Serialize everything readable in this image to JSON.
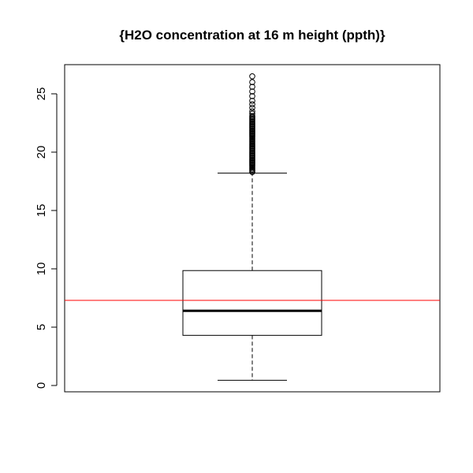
{
  "chart_data": {
    "type": "boxplot",
    "title": "{H2O concentration at 16 m height (ppth)}",
    "xlabel": "",
    "ylabel": "",
    "ylim": [
      -1,
      27.5
    ],
    "yticks": [
      0,
      5,
      10,
      15,
      20,
      25
    ],
    "ytick_labels": [
      "0",
      "5",
      "10",
      "15",
      "20",
      "25"
    ],
    "box": {
      "min": 0.45,
      "q1": 4.3,
      "median": 6.4,
      "q3": 9.85,
      "upper_whisker": 18.2
    },
    "outliers": [
      18.3,
      18.4,
      18.5,
      18.6,
      18.7,
      18.8,
      18.9,
      19.0,
      19.1,
      19.2,
      19.3,
      19.4,
      19.5,
      19.6,
      19.7,
      19.8,
      19.9,
      20.0,
      20.1,
      20.2,
      20.3,
      20.4,
      20.5,
      20.6,
      20.7,
      20.8,
      20.9,
      21.0,
      21.1,
      21.2,
      21.3,
      21.4,
      21.5,
      21.6,
      21.7,
      21.8,
      21.9,
      22.0,
      22.1,
      22.2,
      22.3,
      22.4,
      22.5,
      22.6,
      22.7,
      22.8,
      22.9,
      23.0,
      23.1,
      23.3,
      23.5,
      23.8,
      24.1,
      24.4,
      24.8,
      25.2,
      25.6,
      26.0,
      26.5
    ],
    "reference_line": {
      "value": 7.3,
      "color": "#ff0000"
    },
    "grid": false,
    "colors": {
      "box": "#000000",
      "median": "#000000",
      "outlier": "#000000",
      "reference": "#ff0000"
    }
  }
}
